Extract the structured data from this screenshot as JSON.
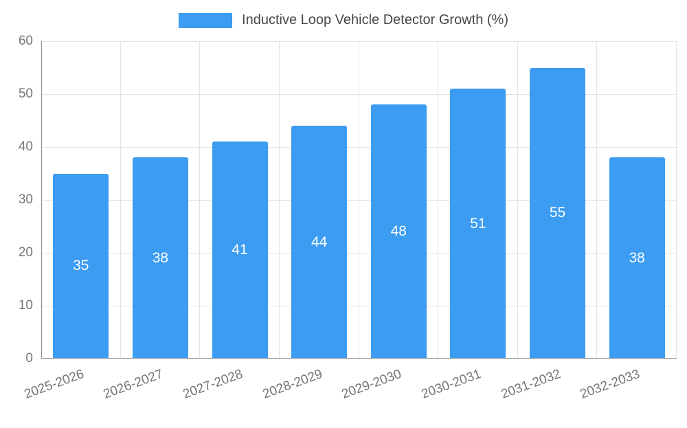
{
  "chart_data": {
    "type": "bar",
    "title": "Inductive Loop Vehicle Detector Growth (%)",
    "legend": [
      "Inductive Loop Vehicle Detector Growth (%)"
    ],
    "legend_position": "top-center",
    "categories": [
      "2025-2026",
      "2026-2027",
      "2027-2028",
      "2028-2029",
      "2029-2030",
      "2030-2031",
      "2031-2032",
      "2032-2033"
    ],
    "values": [
      35,
      38,
      41,
      44,
      48,
      51,
      55,
      38
    ],
    "xlabel": "",
    "ylabel": "",
    "ylim": [
      0,
      60
    ],
    "yticks": [
      0,
      10,
      20,
      30,
      40,
      50,
      60
    ],
    "grid": true,
    "value_labels_inside_bars": true,
    "bar_color": "#3b9cf1",
    "value_label_color": "#ffffff",
    "axis_text_color": "#757575",
    "grid_color": "#e3e3e3",
    "axis_line_color": "#8f8f8f",
    "background": "#ffffff"
  }
}
